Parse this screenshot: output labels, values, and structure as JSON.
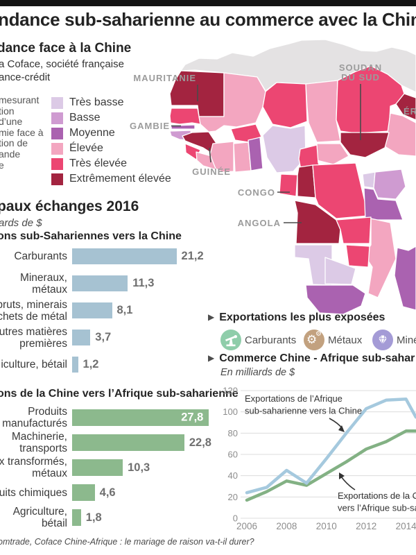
{
  "header": {
    "title_fragment": "ndance sub-saharienne au commerce avec la Chine"
  },
  "dependence": {
    "heading_fragment": "dance face à la Chine",
    "source_fragments": [
      "a Coface, société française",
      "ance-crédit"
    ],
    "description_fragments": [
      "mesurant",
      "tion",
      "d’une",
      "mie face à",
      "tion de",
      "ande",
      "e"
    ],
    "levels": [
      {
        "key": "tres_basse",
        "label": "Très basse",
        "color": "#dccae6"
      },
      {
        "key": "basse",
        "label": "Basse",
        "color": "#cf9bd1"
      },
      {
        "key": "moyenne",
        "label": "Moyenne",
        "color": "#aa62b0"
      },
      {
        "key": "elevee",
        "label": "Élevée",
        "color": "#f3a6c0"
      },
      {
        "key": "tres_elevee",
        "label": "Très élevée",
        "color": "#ec4672"
      },
      {
        "key": "extreme",
        "label": "Extrêmement élevée",
        "color": "#a32440"
      }
    ],
    "not_included_color": "#e4e2e3"
  },
  "map": {
    "labels": [
      "MAURITANIE",
      "GAMBIE",
      "GUINÉE",
      "SOUDAN",
      "DU SUD",
      "ÉR",
      "CONGO",
      "ANGOLA"
    ],
    "label_color": "#9b9b9b"
  },
  "exchanges": {
    "heading_fragment": "paux échanges 2016",
    "unit_fragment": "ards de $",
    "to_china": {
      "title_fragment": "ons sub-Sahariennes vers la Chine",
      "rows": [
        {
          "label_lines": [
            "Carburants"
          ],
          "value_label": "21,2"
        },
        {
          "label_lines": [
            "Mineraux,",
            "métaux"
          ],
          "value_label": "11,3"
        },
        {
          "label_lines": [
            "bruts, minerais",
            "chets de métal"
          ],
          "value_label": "8,1"
        },
        {
          "label_lines": [
            "utres matières",
            "premières"
          ],
          "value_label": "3,7"
        },
        {
          "label_lines": [
            "iculture, bétail"
          ],
          "value_label": "1,2"
        }
      ]
    },
    "from_china": {
      "title_fragment": "ons de la Chine vers l’Afrique sub-saharienne",
      "rows": [
        {
          "label_lines": [
            "Produits",
            "manufacturés"
          ],
          "value_label": "27,8",
          "value_inside": true
        },
        {
          "label_lines": [
            "Machinerie,",
            "transports"
          ],
          "value_label": "22,8"
        },
        {
          "label_lines": [
            "x transformés,",
            "métaux"
          ],
          "value_label": "10,3"
        },
        {
          "label_lines": [
            "uits chimiques"
          ],
          "value_label": "4,6"
        },
        {
          "label_lines": [
            "Agriculture,",
            "bétail"
          ],
          "value_label": "1,8"
        }
      ]
    }
  },
  "exposed": {
    "heading": "Exportations les plus exposées",
    "items": [
      {
        "label": "Carburants",
        "icon": "oil-pump",
        "color": "#8fcdaa"
      },
      {
        "label": "Métaux",
        "icon": "gears",
        "color": "#c2a17f"
      },
      {
        "label": "Miné",
        "icon": "diamond",
        "color": "#a49bd6"
      }
    ]
  },
  "trade": {
    "heading_fragment": "Commerce Chine - Afrique sub-sahar",
    "unit": "En milliards de $",
    "annotation_blue_lines": [
      "Exportations de l’Afrique",
      "sub-saharienne vers la Chine"
    ],
    "annotation_green_lines": [
      "Exportations de la C",
      "vers l’Afrique sub-sa"
    ]
  },
  "footer": {
    "source_fragment": "omtrade, Coface Chine-Afrique : le mariage de raison va-t-il durer?"
  },
  "chart_data": [
    {
      "type": "bar",
      "orientation": "horizontal",
      "title_fragment": "ons sub-Sahariennes vers la Chine",
      "unit_fragment": "ards de $ (milliards de $)",
      "categories": [
        "Carburants",
        "Mineraux, métaux",
        "bruts, minerais chets de métal",
        "utres matières premières",
        "iculture, bétail"
      ],
      "values": [
        21.2,
        11.3,
        8.1,
        3.7,
        1.2
      ],
      "bar_color": "#a6c2d2"
    },
    {
      "type": "bar",
      "orientation": "horizontal",
      "title_fragment": "ons de la Chine vers l’Afrique sub-saharienne",
      "unit_fragment": "milliards de $",
      "categories": [
        "Produits manufacturés",
        "Machinerie, transports",
        "x transformés, métaux",
        "uits chimiques",
        "Agriculture, bétail"
      ],
      "values": [
        27.8,
        22.8,
        10.3,
        4.6,
        1.8
      ],
      "bar_color": "#8cb98d"
    },
    {
      "type": "line",
      "title_fragment": "Commerce Chine - Afrique sub-sahar",
      "unit": "En milliards de $",
      "x": [
        2006,
        2007,
        2008,
        2009,
        2010,
        2011,
        2012,
        2013,
        2014,
        2014.5
      ],
      "xticks": [
        2006,
        2008,
        2010,
        2012,
        2014
      ],
      "yticks": [
        0,
        20,
        40,
        60,
        80,
        100,
        120
      ],
      "ylim": [
        0,
        120
      ],
      "grid": true,
      "series": [
        {
          "name": "Exportations de l’Afrique sub-saharienne vers la Chine",
          "color": "#a5c9de",
          "values": [
            24,
            29,
            45,
            33,
            56,
            80,
            103,
            111,
            112,
            95
          ]
        },
        {
          "name": "Exportations de la C… vers l’Afrique sub-sa…",
          "color": "#83b184",
          "values": [
            17,
            25,
            35,
            31,
            42,
            53,
            65,
            72,
            82,
            82
          ]
        }
      ]
    }
  ]
}
